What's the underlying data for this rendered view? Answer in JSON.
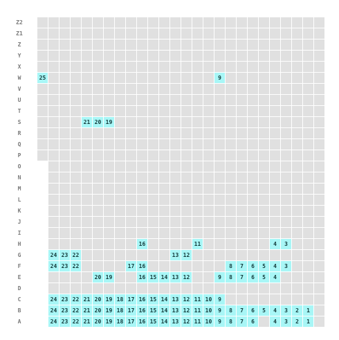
{
  "rows": [
    "Z2",
    "Z1",
    "Z",
    "Y",
    "X",
    "W",
    "V",
    "U",
    "T",
    "S",
    "R",
    "Q",
    "P",
    "O",
    "N",
    "M",
    "L",
    "K",
    "J",
    "I",
    "H",
    "G",
    "F",
    "E",
    "D",
    "C",
    "B",
    "A"
  ],
  "seats": {
    "W": [
      {
        "col": 0,
        "num": 25
      },
      {
        "col": 16,
        "num": 9
      }
    ],
    "S": [
      {
        "col": 4,
        "num": 21
      },
      {
        "col": 5,
        "num": 20
      },
      {
        "col": 6,
        "num": 19
      }
    ],
    "H": [
      {
        "col": 9,
        "num": 16
      },
      {
        "col": 14,
        "num": 11
      },
      {
        "col": 21,
        "num": 4
      },
      {
        "col": 22,
        "num": 3
      }
    ],
    "G": [
      {
        "col": 1,
        "num": 24
      },
      {
        "col": 2,
        "num": 23
      },
      {
        "col": 3,
        "num": 22
      },
      {
        "col": 12,
        "num": 13
      },
      {
        "col": 13,
        "num": 12
      }
    ],
    "F": [
      {
        "col": 1,
        "num": 24
      },
      {
        "col": 2,
        "num": 23
      },
      {
        "col": 3,
        "num": 22
      },
      {
        "col": 8,
        "num": 17
      },
      {
        "col": 9,
        "num": 16
      },
      {
        "col": 17,
        "num": 8
      },
      {
        "col": 18,
        "num": 7
      },
      {
        "col": 19,
        "num": 6
      },
      {
        "col": 20,
        "num": 5
      },
      {
        "col": 21,
        "num": 4
      },
      {
        "col": 22,
        "num": 3
      }
    ],
    "E": [
      {
        "col": 5,
        "num": 20
      },
      {
        "col": 6,
        "num": 19
      },
      {
        "col": 9,
        "num": 16
      },
      {
        "col": 10,
        "num": 15
      },
      {
        "col": 11,
        "num": 14
      },
      {
        "col": 12,
        "num": 13
      },
      {
        "col": 13,
        "num": 12
      },
      {
        "col": 16,
        "num": 9
      },
      {
        "col": 17,
        "num": 8
      },
      {
        "col": 18,
        "num": 7
      },
      {
        "col": 19,
        "num": 6
      },
      {
        "col": 20,
        "num": 5
      },
      {
        "col": 21,
        "num": 4
      }
    ],
    "C": [
      {
        "col": 1,
        "num": 24
      },
      {
        "col": 2,
        "num": 23
      },
      {
        "col": 3,
        "num": 22
      },
      {
        "col": 4,
        "num": 21
      },
      {
        "col": 5,
        "num": 20
      },
      {
        "col": 6,
        "num": 19
      },
      {
        "col": 7,
        "num": 18
      },
      {
        "col": 8,
        "num": 17
      },
      {
        "col": 9,
        "num": 16
      },
      {
        "col": 10,
        "num": 15
      },
      {
        "col": 11,
        "num": 14
      },
      {
        "col": 12,
        "num": 13
      },
      {
        "col": 13,
        "num": 12
      },
      {
        "col": 14,
        "num": 11
      },
      {
        "col": 15,
        "num": 10
      },
      {
        "col": 16,
        "num": 9
      }
    ],
    "B": [
      {
        "col": 1,
        "num": 24
      },
      {
        "col": 2,
        "num": 23
      },
      {
        "col": 3,
        "num": 22
      },
      {
        "col": 4,
        "num": 21
      },
      {
        "col": 5,
        "num": 20
      },
      {
        "col": 6,
        "num": 19
      },
      {
        "col": 7,
        "num": 18
      },
      {
        "col": 8,
        "num": 17
      },
      {
        "col": 9,
        "num": 16
      },
      {
        "col": 10,
        "num": 15
      },
      {
        "col": 11,
        "num": 14
      },
      {
        "col": 12,
        "num": 13
      },
      {
        "col": 13,
        "num": 12
      },
      {
        "col": 14,
        "num": 11
      },
      {
        "col": 15,
        "num": 10
      },
      {
        "col": 16,
        "num": 9
      },
      {
        "col": 17,
        "num": 8
      },
      {
        "col": 18,
        "num": 7
      },
      {
        "col": 19,
        "num": 6
      },
      {
        "col": 20,
        "num": 5
      },
      {
        "col": 21,
        "num": 4
      },
      {
        "col": 22,
        "num": 3
      },
      {
        "col": 23,
        "num": 2
      },
      {
        "col": 24,
        "num": 1
      }
    ],
    "A": [
      {
        "col": 1,
        "num": 24
      },
      {
        "col": 2,
        "num": 23
      },
      {
        "col": 3,
        "num": 22
      },
      {
        "col": 4,
        "num": 21
      },
      {
        "col": 5,
        "num": 20
      },
      {
        "col": 6,
        "num": 19
      },
      {
        "col": 7,
        "num": 18
      },
      {
        "col": 8,
        "num": 17
      },
      {
        "col": 9,
        "num": 16
      },
      {
        "col": 10,
        "num": 15
      },
      {
        "col": 11,
        "num": 14
      },
      {
        "col": 12,
        "num": 13
      },
      {
        "col": 13,
        "num": 12
      },
      {
        "col": 14,
        "num": 11
      },
      {
        "col": 15,
        "num": 10
      },
      {
        "col": 16,
        "num": 9
      },
      {
        "col": 17,
        "num": 8
      },
      {
        "col": 18,
        "num": 7
      },
      {
        "col": 19,
        "num": 6
      },
      {
        "col": 21,
        "num": 4
      },
      {
        "col": 22,
        "num": 3
      },
      {
        "col": 23,
        "num": 2
      },
      {
        "col": 24,
        "num": 1
      }
    ]
  },
  "colors": {
    "seat_available": "#a8f6f6",
    "seat_empty": "#e0e0e0",
    "row_label": "#7a7a7a"
  }
}
